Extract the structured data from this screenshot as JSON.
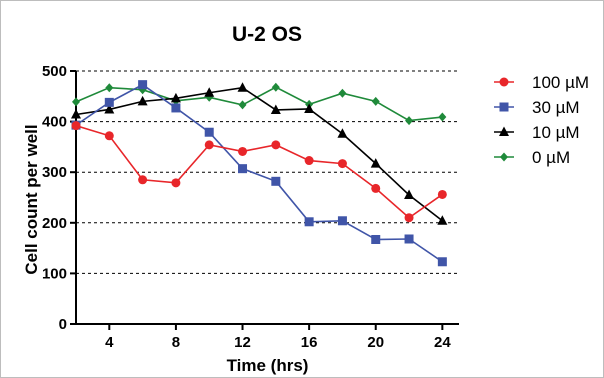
{
  "chart_data": {
    "type": "line",
    "title": "U-2 OS",
    "xlabel": "Time (hrs)",
    "ylabel": "Cell count per well",
    "xlim": [
      2,
      25
    ],
    "ylim": [
      0,
      500
    ],
    "xticks": [
      4,
      8,
      12,
      16,
      20,
      24
    ],
    "yticks": [
      0,
      100,
      200,
      300,
      400,
      500
    ],
    "grid": "horizontal-dashed",
    "legend_position": "right",
    "x": [
      2,
      4,
      6,
      8,
      10,
      12,
      14,
      16,
      18,
      20,
      22,
      24
    ],
    "series": [
      {
        "name": "100 µM",
        "color": "#e8262a",
        "marker": "circle",
        "values": [
          392,
          372,
          285,
          279,
          354,
          341,
          354,
          323,
          317,
          268,
          210,
          256
        ]
      },
      {
        "name": "30 µM",
        "color": "#4055a8",
        "marker": "square",
        "values": [
          393,
          438,
          473,
          427,
          379,
          307,
          282,
          202,
          204,
          167,
          168,
          123
        ]
      },
      {
        "name": "10 µM",
        "color": "#000000",
        "marker": "triangle",
        "values": [
          414,
          424,
          440,
          446,
          457,
          467,
          423,
          425,
          376,
          317,
          255,
          204
        ]
      },
      {
        "name": "0 µM",
        "color": "#1f8a3a",
        "marker": "diamond",
        "values": [
          439,
          467,
          463,
          441,
          448,
          433,
          468,
          434,
          456,
          440,
          402,
          409
        ]
      }
    ]
  }
}
